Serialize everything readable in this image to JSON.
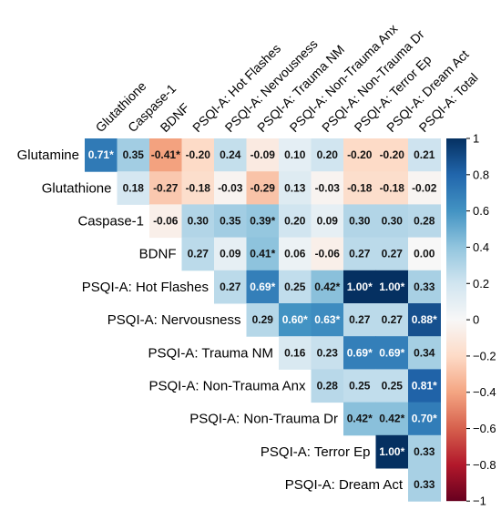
{
  "chart_data": {
    "type": "heatmap",
    "columns": [
      "Glutathione",
      "Caspase-1",
      "BDNF",
      "PSQI-A: Hot Flashes",
      "PSQI-A: Nervousness",
      "PSQI-A: Trauma NM",
      "PSQI-A: Non-Trauma Anx",
      "PSQI-A: Non-Trauma Dr",
      "PSQI-A: Terror Ep",
      "PSQI-A: Dream Act",
      "PSQI-A: Total"
    ],
    "rows": [
      "Glutamine",
      "Glutathione",
      "Caspase-1",
      "BDNF",
      "PSQI-A: Hot Flashes",
      "PSQI-A: Nervousness",
      "PSQI-A: Trauma NM",
      "PSQI-A: Non-Trauma Anx",
      "PSQI-A: Non-Trauma Dr",
      "PSQI-A: Terror Ep",
      "PSQI-A: Dream Act"
    ],
    "cells": [
      [
        {
          "v": 0.71,
          "s": true
        },
        {
          "v": 0.35,
          "s": false
        },
        {
          "v": -0.41,
          "s": true
        },
        {
          "v": -0.2,
          "s": false
        },
        {
          "v": 0.24,
          "s": false
        },
        {
          "v": -0.09,
          "s": false
        },
        {
          "v": 0.1,
          "s": false
        },
        {
          "v": 0.2,
          "s": false
        },
        {
          "v": -0.2,
          "s": false
        },
        {
          "v": -0.2,
          "s": false
        },
        {
          "v": 0.21,
          "s": false
        }
      ],
      [
        null,
        {
          "v": 0.18,
          "s": false
        },
        {
          "v": -0.27,
          "s": false
        },
        {
          "v": -0.18,
          "s": false
        },
        {
          "v": -0.03,
          "s": false
        },
        {
          "v": -0.29,
          "s": false
        },
        {
          "v": 0.13,
          "s": false
        },
        {
          "v": -0.03,
          "s": false
        },
        {
          "v": -0.18,
          "s": false
        },
        {
          "v": -0.18,
          "s": false
        },
        {
          "v": -0.02,
          "s": false
        }
      ],
      [
        null,
        null,
        {
          "v": -0.06,
          "s": false
        },
        {
          "v": 0.3,
          "s": false
        },
        {
          "v": 0.35,
          "s": false
        },
        {
          "v": 0.39,
          "s": true
        },
        {
          "v": 0.2,
          "s": false
        },
        {
          "v": 0.09,
          "s": false
        },
        {
          "v": 0.3,
          "s": false
        },
        {
          "v": 0.3,
          "s": false
        },
        {
          "v": 0.28,
          "s": false
        }
      ],
      [
        null,
        null,
        null,
        {
          "v": 0.27,
          "s": false
        },
        {
          "v": 0.09,
          "s": false
        },
        {
          "v": 0.41,
          "s": true
        },
        {
          "v": 0.06,
          "s": false
        },
        {
          "v": -0.06,
          "s": false
        },
        {
          "v": 0.27,
          "s": false
        },
        {
          "v": 0.27,
          "s": false
        },
        {
          "v": 0.0,
          "s": false
        }
      ],
      [
        null,
        null,
        null,
        null,
        {
          "v": 0.27,
          "s": false
        },
        {
          "v": 0.69,
          "s": true
        },
        {
          "v": 0.25,
          "s": false
        },
        {
          "v": 0.42,
          "s": true
        },
        {
          "v": 1.0,
          "s": true
        },
        {
          "v": 1.0,
          "s": true
        },
        {
          "v": 0.33,
          "s": false
        }
      ],
      [
        null,
        null,
        null,
        null,
        null,
        {
          "v": 0.29,
          "s": false
        },
        {
          "v": 0.6,
          "s": true
        },
        {
          "v": 0.63,
          "s": true
        },
        {
          "v": 0.27,
          "s": false
        },
        {
          "v": 0.27,
          "s": false
        },
        {
          "v": 0.88,
          "s": true
        }
      ],
      [
        null,
        null,
        null,
        null,
        null,
        null,
        {
          "v": 0.16,
          "s": false
        },
        {
          "v": 0.23,
          "s": false
        },
        {
          "v": 0.69,
          "s": true
        },
        {
          "v": 0.69,
          "s": true
        },
        {
          "v": 0.34,
          "s": false
        }
      ],
      [
        null,
        null,
        null,
        null,
        null,
        null,
        null,
        {
          "v": 0.28,
          "s": false
        },
        {
          "v": 0.25,
          "s": false
        },
        {
          "v": 0.25,
          "s": false
        },
        {
          "v": 0.81,
          "s": true
        }
      ],
      [
        null,
        null,
        null,
        null,
        null,
        null,
        null,
        null,
        {
          "v": 0.42,
          "s": true
        },
        {
          "v": 0.42,
          "s": true
        },
        {
          "v": 0.7,
          "s": true
        }
      ],
      [
        null,
        null,
        null,
        null,
        null,
        null,
        null,
        null,
        null,
        {
          "v": 1.0,
          "s": true
        },
        {
          "v": 0.33,
          "s": false
        }
      ],
      [
        null,
        null,
        null,
        null,
        null,
        null,
        null,
        null,
        null,
        null,
        {
          "v": 0.33,
          "s": false
        }
      ]
    ],
    "colorbar": {
      "min": -1,
      "max": 1,
      "ticks": [
        "1",
        "0.8",
        "0.6",
        "0.4",
        "0.2",
        "0",
        "−0.2",
        "−0.4",
        "−0.6",
        "−0.8",
        "−1"
      ],
      "colormap": "RdBu",
      "colors": [
        "#67001f",
        "#b2182b",
        "#d6604d",
        "#f4a582",
        "#fddbc7",
        "#f7f7f7",
        "#d1e5f0",
        "#92c5de",
        "#4393c3",
        "#2166ac",
        "#053061"
      ]
    },
    "significance_marker": "*",
    "title": "",
    "xlabel": "",
    "ylabel": ""
  }
}
